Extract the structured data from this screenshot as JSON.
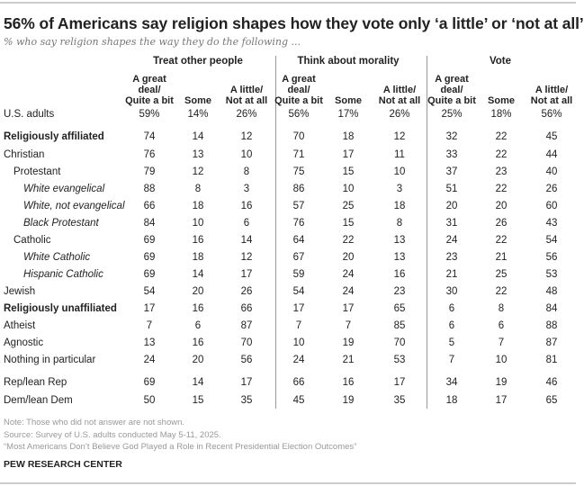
{
  "title": "56% of Americans say religion shapes how they vote only ‘a little’ or ‘not at all’",
  "subtitle": "% who say religion shapes the way they do the following ...",
  "chart_data": {
    "type": "table",
    "groups": [
      "Treat other people",
      "Think about morality",
      "Vote"
    ],
    "columns": [
      "A great\ndeal/\nQuite a bit",
      "Some",
      "A little/\nNot at all"
    ],
    "rows": [
      {
        "label": "U.S. adults",
        "style": "normal",
        "indent": 0,
        "values": [
          "59%",
          "14%",
          "26%",
          "56%",
          "17%",
          "26%",
          "25%",
          "18%",
          "56%"
        ]
      },
      {
        "label": "Religiously affiliated",
        "style": "bold",
        "indent": 0,
        "values": [
          74,
          14,
          12,
          70,
          18,
          12,
          32,
          22,
          45
        ]
      },
      {
        "label": "Christian",
        "style": "normal",
        "indent": 0,
        "values": [
          76,
          13,
          10,
          71,
          17,
          11,
          33,
          22,
          44
        ]
      },
      {
        "label": "Protestant",
        "style": "normal",
        "indent": 1,
        "values": [
          79,
          12,
          8,
          75,
          15,
          10,
          37,
          23,
          40
        ]
      },
      {
        "label": "White evangelical",
        "style": "italic",
        "indent": 2,
        "values": [
          88,
          8,
          3,
          86,
          10,
          3,
          51,
          22,
          26
        ]
      },
      {
        "label": "White, not evangelical",
        "style": "italic",
        "indent": 2,
        "values": [
          66,
          18,
          16,
          57,
          25,
          18,
          20,
          20,
          60
        ]
      },
      {
        "label": "Black Protestant",
        "style": "italic",
        "indent": 2,
        "values": [
          84,
          10,
          6,
          76,
          15,
          8,
          31,
          26,
          43
        ]
      },
      {
        "label": "Catholic",
        "style": "normal",
        "indent": 1,
        "values": [
          69,
          16,
          14,
          64,
          22,
          13,
          24,
          22,
          54
        ]
      },
      {
        "label": "White Catholic",
        "style": "italic",
        "indent": 2,
        "values": [
          69,
          18,
          12,
          67,
          20,
          13,
          23,
          21,
          56
        ]
      },
      {
        "label": "Hispanic Catholic",
        "style": "italic",
        "indent": 2,
        "values": [
          69,
          14,
          17,
          59,
          24,
          16,
          21,
          25,
          53
        ]
      },
      {
        "label": "Jewish",
        "style": "normal",
        "indent": 0,
        "values": [
          54,
          20,
          26,
          54,
          24,
          23,
          30,
          22,
          48
        ]
      },
      {
        "label": "Religiously unaffiliated",
        "style": "bold",
        "indent": 0,
        "values": [
          17,
          16,
          66,
          17,
          17,
          65,
          6,
          8,
          84
        ]
      },
      {
        "label": "Atheist",
        "style": "normal",
        "indent": 0,
        "values": [
          7,
          6,
          87,
          7,
          7,
          85,
          6,
          6,
          88
        ]
      },
      {
        "label": "Agnostic",
        "style": "normal",
        "indent": 0,
        "values": [
          13,
          16,
          70,
          10,
          19,
          70,
          5,
          7,
          87
        ]
      },
      {
        "label": "Nothing in particular",
        "style": "normal",
        "indent": 0,
        "values": [
          24,
          20,
          56,
          24,
          21,
          53,
          7,
          10,
          81
        ]
      },
      {
        "label": "Rep/lean Rep",
        "style": "normal",
        "indent": 0,
        "values": [
          69,
          14,
          17,
          66,
          16,
          17,
          34,
          19,
          46
        ]
      },
      {
        "label": "Dem/lean Dem",
        "style": "normal",
        "indent": 0,
        "values": [
          50,
          15,
          35,
          45,
          19,
          35,
          18,
          17,
          65
        ]
      }
    ]
  },
  "footer": {
    "note": "Note: Those who did not answer are not shown.",
    "source": "Source: Survey of U.S. adults conducted May 5-11, 2025.",
    "report": "“Most Americans Don’t Believe God Played a Role in Recent Presidential Election Outcomes”",
    "org": "PEW RESEARCH CENTER"
  }
}
